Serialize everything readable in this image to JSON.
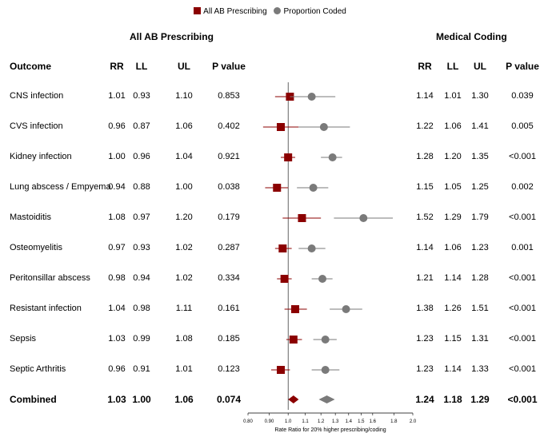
{
  "legend": {
    "items": [
      {
        "label": "All AB Prescribing",
        "color": "#8b0000",
        "shape": "square"
      },
      {
        "label": "Proportion Coded",
        "color": "#7a7a7a",
        "shape": "circle"
      }
    ]
  },
  "sections": {
    "left_title": "All AB Prescribing",
    "right_title": "Medical Coding"
  },
  "headers": {
    "outcome": "Outcome",
    "rr": "RR",
    "ll": "LL",
    "ul": "UL",
    "p": "P value"
  },
  "rows": [
    {
      "outcome": "CNS infection",
      "ab": {
        "rr": "1.01",
        "ll": "0.93",
        "ul": "1.10",
        "p": "0.853"
      },
      "coded": {
        "rr": "1.14",
        "ll": "1.01",
        "ul": "1.30",
        "p": "0.039"
      }
    },
    {
      "outcome": "CVS infection",
      "ab": {
        "rr": "0.96",
        "ll": "0.87",
        "ul": "1.06",
        "p": "0.402"
      },
      "coded": {
        "rr": "1.22",
        "ll": "1.06",
        "ul": "1.41",
        "p": "0.005"
      }
    },
    {
      "outcome": "Kidney infection",
      "ab": {
        "rr": "1.00",
        "ll": "0.96",
        "ul": "1.04",
        "p": "0.921"
      },
      "coded": {
        "rr": "1.28",
        "ll": "1.20",
        "ul": "1.35",
        "p": "<0.001"
      }
    },
    {
      "outcome": "Lung abscess / Empyema",
      "ab": {
        "rr": "0.94",
        "ll": "0.88",
        "ul": "1.00",
        "p": "0.038"
      },
      "coded": {
        "rr": "1.15",
        "ll": "1.05",
        "ul": "1.25",
        "p": "0.002"
      }
    },
    {
      "outcome": "Mastoiditis",
      "ab": {
        "rr": "1.08",
        "ll": "0.97",
        "ul": "1.20",
        "p": "0.179"
      },
      "coded": {
        "rr": "1.52",
        "ll": "1.29",
        "ul": "1.79",
        "p": "<0.001"
      }
    },
    {
      "outcome": "Osteomyelitis",
      "ab": {
        "rr": "0.97",
        "ll": "0.93",
        "ul": "1.02",
        "p": "0.287"
      },
      "coded": {
        "rr": "1.14",
        "ll": "1.06",
        "ul": "1.23",
        "p": "0.001"
      }
    },
    {
      "outcome": "Peritonsillar abscess",
      "ab": {
        "rr": "0.98",
        "ll": "0.94",
        "ul": "1.02",
        "p": "0.334"
      },
      "coded": {
        "rr": "1.21",
        "ll": "1.14",
        "ul": "1.28",
        "p": "<0.001"
      }
    },
    {
      "outcome": "Resistant infection",
      "ab": {
        "rr": "1.04",
        "ll": "0.98",
        "ul": "1.11",
        "p": "0.161"
      },
      "coded": {
        "rr": "1.38",
        "ll": "1.26",
        "ul": "1.51",
        "p": "<0.001"
      }
    },
    {
      "outcome": "Sepsis",
      "ab": {
        "rr": "1.03",
        "ll": "0.99",
        "ul": "1.08",
        "p": "0.185"
      },
      "coded": {
        "rr": "1.23",
        "ll": "1.15",
        "ul": "1.31",
        "p": "<0.001"
      }
    },
    {
      "outcome": "Septic Arthritis",
      "ab": {
        "rr": "0.96",
        "ll": "0.91",
        "ul": "1.01",
        "p": "0.123"
      },
      "coded": {
        "rr": "1.23",
        "ll": "1.14",
        "ul": "1.33",
        "p": "<0.001"
      }
    }
  ],
  "combined": {
    "outcome": "Combined",
    "ab": {
      "rr": "1.03",
      "ll": "1.00",
      "ul": "1.06",
      "p": "0.074"
    },
    "coded": {
      "rr": "1.24",
      "ll": "1.18",
      "ul": "1.29",
      "p": "<0.001"
    }
  },
  "chart_data": {
    "type": "forest",
    "xlabel": "Rate Ratio for 20% higher prescribing/coding",
    "xlim": [
      0.8,
      2.0
    ],
    "xscale": "log",
    "ticks": [
      0.8,
      0.9,
      1.0,
      1.1,
      1.2,
      1.3,
      1.4,
      1.5,
      1.6,
      1.8,
      2.0
    ],
    "tick_labels": [
      "0.80",
      "0.90",
      "1.0",
      "1.1",
      "1.2",
      "1.3",
      "1.4",
      "1.5",
      "1.6",
      "1.8",
      "2.0"
    ],
    "reference_line": 1.0,
    "categories": [
      "CNS infection",
      "CVS infection",
      "Kidney infection",
      "Lung abscess / Empyema",
      "Mastoiditis",
      "Osteomyelitis",
      "Peritonsillar abscess",
      "Resistant infection",
      "Sepsis",
      "Septic Arthritis",
      "Combined"
    ],
    "series": [
      {
        "name": "All AB Prescribing",
        "color": "#8b0000",
        "marker": "square",
        "rr": [
          1.01,
          0.96,
          1.0,
          0.94,
          1.08,
          0.97,
          0.98,
          1.04,
          1.03,
          0.96,
          1.03
        ],
        "ll": [
          0.93,
          0.87,
          0.96,
          0.88,
          0.97,
          0.93,
          0.94,
          0.98,
          0.99,
          0.91,
          1.0
        ],
        "ul": [
          1.1,
          1.06,
          1.04,
          1.0,
          1.2,
          1.02,
          1.02,
          1.11,
          1.08,
          1.01,
          1.06
        ]
      },
      {
        "name": "Proportion Coded",
        "color": "#7a7a7a",
        "marker": "circle",
        "rr": [
          1.14,
          1.22,
          1.28,
          1.15,
          1.52,
          1.14,
          1.21,
          1.38,
          1.23,
          1.23,
          1.24
        ],
        "ll": [
          1.01,
          1.06,
          1.2,
          1.05,
          1.29,
          1.06,
          1.14,
          1.26,
          1.15,
          1.14,
          1.18
        ],
        "ul": [
          1.3,
          1.41,
          1.35,
          1.25,
          1.79,
          1.23,
          1.28,
          1.51,
          1.31,
          1.33,
          1.29
        ]
      }
    ]
  }
}
